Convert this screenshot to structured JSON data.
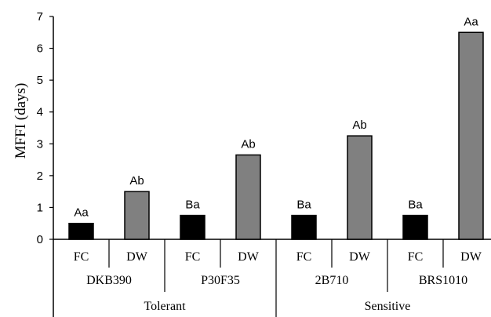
{
  "chart_data": {
    "type": "bar",
    "title": "",
    "xlabel": "",
    "ylabel": "MFFI (days)",
    "ylim": [
      0,
      7
    ],
    "yticks": [
      "0",
      "1",
      "2",
      "3",
      "4",
      "5",
      "6",
      "7"
    ],
    "grid": false,
    "categories": [
      "FC",
      "DW",
      "FC",
      "DW",
      "FC",
      "DW",
      "FC",
      "DW"
    ],
    "values": [
      0.5,
      1.5,
      0.75,
      2.65,
      0.75,
      3.25,
      0.75,
      6.5
    ],
    "data_labels": [
      "Aa",
      "Ab",
      "Ba",
      "Ab",
      "Ba",
      "Ab",
      "Ba",
      "Aa"
    ],
    "bar_colors": [
      "#000000",
      "#808080",
      "#000000",
      "#808080",
      "#000000",
      "#808080",
      "#000000",
      "#808080"
    ],
    "groups": [
      "DKB390",
      "P30F35",
      "2B710",
      "BRS1010"
    ],
    "supergroups": [
      "Tolerant",
      "Sensitive"
    ]
  }
}
